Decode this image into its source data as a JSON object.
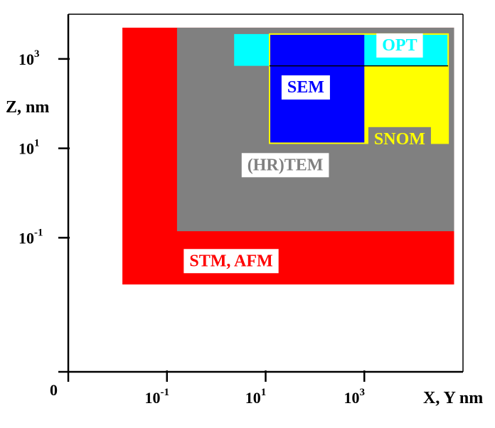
{
  "chart_data": {
    "type": "region-map",
    "xlabel": "X, Y nm",
    "ylabel": "Z, nm",
    "x_scale": "log",
    "y_scale": "log",
    "xlim": [
      0.001,
      100000
    ],
    "ylim": [
      0.0001,
      10000
    ],
    "origin_label": "0",
    "x_ticks": [
      {
        "value": 0.1,
        "base": "10",
        "exp": "-1"
      },
      {
        "value": 10,
        "base": "10",
        "exp": "1"
      },
      {
        "value": 1000,
        "base": "10",
        "exp": "3"
      }
    ],
    "y_ticks": [
      {
        "value": 0.1,
        "base": "10",
        "exp": "-1"
      },
      {
        "value": 10,
        "base": "10",
        "exp": "1"
      },
      {
        "value": 1000,
        "base": "10",
        "exp": "3"
      }
    ],
    "regions": [
      {
        "label": "STM, AFM",
        "color": "#ff0000",
        "label_color": "#ff0000",
        "x_range": [
          0.0125,
          66000
        ],
        "z_range": [
          0.009,
          5000
        ],
        "label_at": [
          2,
          0.03
        ]
      },
      {
        "label": "(HR)TEM",
        "color": "#808080",
        "label_color": "#808080",
        "x_range": [
          0.16,
          66000
        ],
        "z_range": [
          0.14,
          5000
        ],
        "label_at": [
          25,
          4.2
        ]
      },
      {
        "label": "OPT",
        "color": "#00ffff",
        "label_color": "#00ffff",
        "x_range": [
          2.3,
          50000
        ],
        "z_range": [
          700,
          3600
        ],
        "label_at": [
          5200,
          2000
        ]
      },
      {
        "label": "SNOM",
        "color": "#ffff00",
        "label_color": "#ffff00",
        "x_range": [
          1000,
          50000
        ],
        "z_range": [
          13,
          700
        ],
        "label_at": [
          5200,
          16
        ]
      },
      {
        "label": "SEM",
        "color": "#0000ff",
        "label_color": "#0000ff",
        "x_range": [
          12,
          1000
        ],
        "z_range": [
          13,
          3600
        ],
        "label_at": [
          65,
          230
        ]
      }
    ]
  }
}
